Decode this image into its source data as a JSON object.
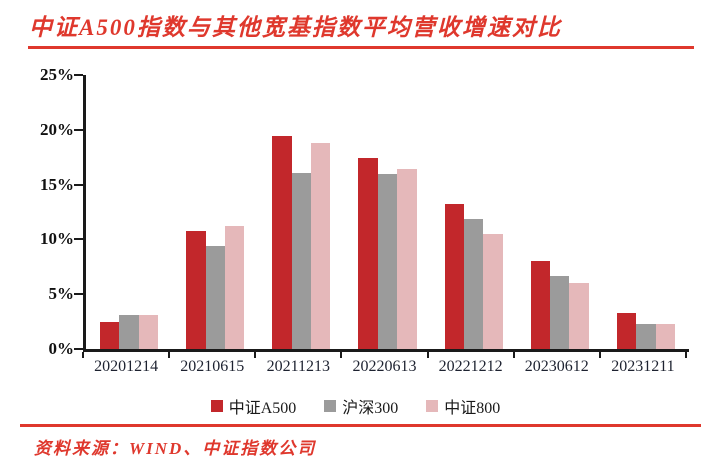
{
  "header": {
    "title": "中证A500指数与其他宽基指数平均营收增速对比"
  },
  "footer": {
    "source": "资料来源：WIND、中证指数公司"
  },
  "colors": {
    "accent_red": "#df382d",
    "axis": "#1a1a1a",
    "x_label": "#1d2230"
  },
  "chart_data": {
    "type": "bar",
    "title": "中证A500指数与其他宽基指数平均营收增速对比",
    "xlabel": "",
    "ylabel": "",
    "categories": [
      "20201214",
      "20210615",
      "20211213",
      "20220613",
      "20221212",
      "20230612",
      "20231211"
    ],
    "series": [
      {
        "name": "中证A500",
        "color": "#c2272b",
        "values": [
          2.5,
          10.8,
          19.4,
          17.4,
          13.2,
          8.0,
          3.3
        ]
      },
      {
        "name": "沪深300",
        "color": "#9b9b9b",
        "values": [
          3.1,
          9.4,
          16.1,
          16.0,
          11.9,
          6.7,
          2.3
        ]
      },
      {
        "name": "中证800",
        "color": "#e5b8ba",
        "values": [
          3.1,
          11.2,
          18.8,
          16.4,
          10.5,
          6.0,
          2.3
        ]
      }
    ],
    "ylim": [
      0,
      25
    ],
    "ytick_values": [
      0,
      5,
      10,
      15,
      20,
      25
    ],
    "ytick_labels": [
      "0%",
      "5%",
      "10%",
      "15%",
      "20%",
      "25%"
    ],
    "grid": false,
    "legend_position": "bottom"
  }
}
